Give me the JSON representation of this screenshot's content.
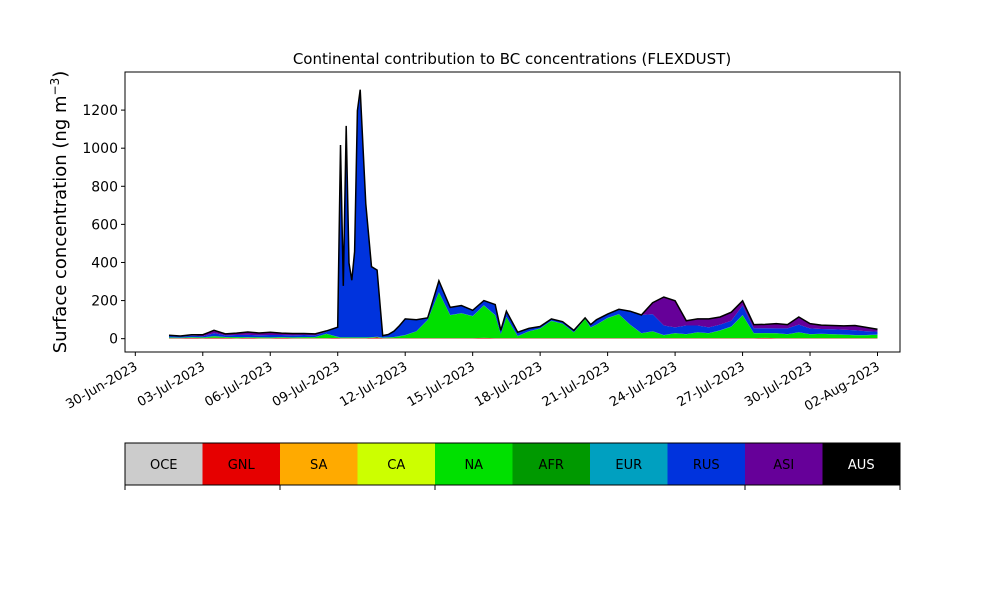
{
  "chart_data": {
    "type": "area",
    "title": "Continental contribution to BC concentrations (FLEXDUST)",
    "ylabel": "Surface concentration (ng m",
    "ylabel_sup": "−3",
    "ylabel_close": ")",
    "xlabel": "",
    "ylim": [
      -70,
      1400
    ],
    "xlim": [
      "2023-06-29T13:00",
      "2023-08-03T00:00"
    ],
    "y_ticks": [
      0,
      200,
      400,
      600,
      800,
      1000,
      1200
    ],
    "x_ticks": [
      "30-Jun-2023",
      "03-Jul-2023",
      "06-Jul-2023",
      "09-Jul-2023",
      "12-Jul-2023",
      "15-Jul-2023",
      "18-Jul-2023",
      "21-Jul-2023",
      "24-Jul-2023",
      "27-Jul-2023",
      "30-Jul-2023",
      "02-Aug-2023"
    ],
    "x": [
      "2023-07-01T12:00",
      "2023-07-02T00:00",
      "2023-07-02T12:00",
      "2023-07-03T00:00",
      "2023-07-03T06:00",
      "2023-07-03T12:00",
      "2023-07-04T00:00",
      "2023-07-04T12:00",
      "2023-07-05T00:00",
      "2023-07-05T12:00",
      "2023-07-06T00:00",
      "2023-07-06T12:00",
      "2023-07-07T00:00",
      "2023-07-07T12:00",
      "2023-07-08T00:00",
      "2023-07-08T12:00",
      "2023-07-09T00:00",
      "2023-07-09T03:00",
      "2023-07-09T06:00",
      "2023-07-09T09:00",
      "2023-07-09T12:00",
      "2023-07-09T15:00",
      "2023-07-09T18:00",
      "2023-07-09T21:00",
      "2023-07-10T00:00",
      "2023-07-10T06:00",
      "2023-07-10T12:00",
      "2023-07-10T18:00",
      "2023-07-11T00:00",
      "2023-07-11T06:00",
      "2023-07-11T12:00",
      "2023-07-11T18:00",
      "2023-07-12T00:00",
      "2023-07-12T12:00",
      "2023-07-13T00:00",
      "2023-07-13T12:00",
      "2023-07-14T00:00",
      "2023-07-14T12:00",
      "2023-07-15T00:00",
      "2023-07-15T12:00",
      "2023-07-16T00:00",
      "2023-07-16T06:00",
      "2023-07-16T12:00",
      "2023-07-17T00:00",
      "2023-07-17T12:00",
      "2023-07-18T00:00",
      "2023-07-18T12:00",
      "2023-07-19T00:00",
      "2023-07-19T12:00",
      "2023-07-20T00:00",
      "2023-07-20T06:00",
      "2023-07-20T12:00",
      "2023-07-21T00:00",
      "2023-07-21T12:00",
      "2023-07-22T00:00",
      "2023-07-22T12:00",
      "2023-07-23T00:00",
      "2023-07-23T12:00",
      "2023-07-24T00:00",
      "2023-07-24T12:00",
      "2023-07-25T00:00",
      "2023-07-25T12:00",
      "2023-07-26T00:00",
      "2023-07-26T12:00",
      "2023-07-27T00:00",
      "2023-07-27T12:00",
      "2023-07-28T00:00",
      "2023-07-28T12:00",
      "2023-07-29T00:00",
      "2023-07-29T12:00",
      "2023-07-30T00:00",
      "2023-07-30T12:00",
      "2023-07-31T00:00",
      "2023-07-31T12:00",
      "2023-08-01T00:00",
      "2023-08-01T12:00",
      "2023-08-02T00:00"
    ],
    "series": [
      {
        "name": "OCE",
        "color": "#cccccc",
        "values": [
          1,
          1,
          1,
          1,
          1,
          1,
          1,
          1,
          1,
          1,
          1,
          1,
          1,
          1,
          1,
          1,
          1,
          1,
          1,
          1,
          1,
          1,
          1,
          1,
          1,
          1,
          1,
          1,
          1,
          1,
          1,
          1,
          1,
          1,
          1,
          1,
          1,
          1,
          1,
          1,
          1,
          1,
          1,
          1,
          1,
          1,
          1,
          1,
          1,
          1,
          1,
          1,
          1,
          1,
          1,
          1,
          1,
          1,
          1,
          1,
          1,
          1,
          1,
          1,
          1,
          1,
          1,
          1,
          1,
          1,
          1,
          1,
          1,
          1,
          1,
          1,
          1
        ]
      },
      {
        "name": "GNL",
        "color": "#e60000",
        "values": [
          2,
          2,
          3,
          2,
          3,
          4,
          3,
          2,
          3,
          2,
          2,
          3,
          2,
          2,
          2,
          2,
          3,
          2,
          2,
          2,
          2,
          2,
          2,
          2,
          2,
          2,
          3,
          5,
          2,
          2,
          2,
          2,
          2,
          2,
          2,
          2,
          2,
          2,
          2,
          3,
          2,
          2,
          2,
          2,
          2,
          2,
          2,
          2,
          2,
          2,
          2,
          2,
          2,
          2,
          2,
          2,
          2,
          2,
          2,
          2,
          2,
          2,
          2,
          2,
          2,
          2,
          3,
          2,
          2,
          2,
          2,
          2,
          2,
          2,
          2,
          2,
          2
        ]
      },
      {
        "name": "SA",
        "color": "#ffaa00",
        "values": [
          0,
          0,
          0,
          0,
          0,
          0,
          0,
          0,
          0,
          0,
          0,
          0,
          0,
          0,
          0,
          0,
          0,
          0,
          0,
          0,
          0,
          0,
          0,
          0,
          0,
          0,
          0,
          0,
          0,
          0,
          0,
          0,
          0,
          0,
          0,
          0,
          0,
          0,
          0,
          0,
          0,
          0,
          0,
          0,
          0,
          0,
          0,
          0,
          0,
          0,
          0,
          0,
          0,
          0,
          0,
          0,
          0,
          0,
          0,
          0,
          0,
          0,
          0,
          0,
          0,
          0,
          0,
          0,
          0,
          0,
          0,
          0,
          0,
          0,
          0,
          0,
          0
        ]
      },
      {
        "name": "CA",
        "color": "#ccff00",
        "values": [
          0,
          0,
          0,
          0,
          0,
          0,
          0,
          0,
          0,
          0,
          0,
          0,
          0,
          0,
          0,
          0,
          0,
          0,
          0,
          0,
          0,
          0,
          0,
          0,
          0,
          0,
          0,
          0,
          0,
          0,
          0,
          0,
          0,
          0,
          0,
          0,
          0,
          0,
          0,
          0,
          0,
          0,
          0,
          0,
          0,
          0,
          0,
          0,
          0,
          0,
          0,
          0,
          0,
          0,
          0,
          0,
          0,
          0,
          0,
          0,
          0,
          0,
          0,
          0,
          0,
          0,
          0,
          0,
          0,
          0,
          0,
          0,
          0,
          0,
          0,
          0,
          0
        ]
      },
      {
        "name": "NA",
        "color": "#00e000",
        "values": [
          3,
          2,
          3,
          3,
          5,
          8,
          4,
          5,
          3,
          4,
          3,
          4,
          3,
          5,
          5,
          22,
          5,
          3,
          3,
          3,
          3,
          3,
          3,
          3,
          3,
          3,
          3,
          3,
          2,
          3,
          5,
          10,
          15,
          35,
          95,
          240,
          120,
          130,
          115,
          170,
          120,
          20,
          110,
          10,
          35,
          50,
          90,
          75,
          30,
          100,
          55,
          70,
          105,
          125,
          70,
          25,
          35,
          15,
          25,
          20,
          30,
          25,
          40,
          60,
          120,
          25,
          25,
          25,
          20,
          30,
          20,
          22,
          20,
          18,
          15,
          15,
          18
        ]
      },
      {
        "name": "AFR",
        "color": "#009900",
        "values": [
          0,
          0,
          0,
          0,
          0,
          0,
          0,
          0,
          0,
          0,
          0,
          0,
          0,
          0,
          0,
          0,
          0,
          0,
          0,
          0,
          0,
          0,
          0,
          0,
          0,
          0,
          0,
          0,
          0,
          0,
          0,
          0,
          0,
          0,
          0,
          0,
          0,
          0,
          0,
          0,
          0,
          0,
          0,
          0,
          0,
          0,
          0,
          0,
          0,
          0,
          0,
          0,
          0,
          0,
          0,
          0,
          0,
          0,
          0,
          0,
          0,
          0,
          0,
          0,
          0,
          0,
          0,
          0,
          0,
          0,
          0,
          0,
          0,
          0,
          0,
          0,
          0
        ]
      },
      {
        "name": "EUR",
        "color": "#00a0c0",
        "values": [
          1,
          1,
          1,
          1,
          1,
          1,
          1,
          1,
          1,
          1,
          1,
          1,
          1,
          1,
          1,
          1,
          1,
          1,
          1,
          1,
          1,
          1,
          1,
          1,
          1,
          1,
          1,
          1,
          1,
          1,
          1,
          1,
          1,
          1,
          1,
          1,
          1,
          1,
          1,
          1,
          1,
          1,
          1,
          1,
          1,
          1,
          1,
          1,
          1,
          1,
          1,
          1,
          1,
          1,
          1,
          1,
          1,
          1,
          1,
          1,
          1,
          1,
          1,
          1,
          1,
          1,
          1,
          1,
          1,
          1,
          1,
          1,
          1,
          1,
          1,
          1,
          1
        ]
      },
      {
        "name": "RUS",
        "color": "#0033dd",
        "values": [
          8,
          5,
          8,
          6,
          10,
          15,
          8,
          10,
          12,
          10,
          12,
          10,
          10,
          10,
          8,
          10,
          50,
          1010,
          270,
          1110,
          390,
          300,
          450,
          1190,
          1300,
          700,
          370,
          350,
          10,
          15,
          30,
          55,
          85,
          60,
          10,
          60,
          40,
          40,
          30,
          25,
          55,
          20,
          30,
          20,
          15,
          10,
          10,
          10,
          10,
          5,
          15,
          25,
          20,
          25,
          70,
          95,
          90,
          50,
          30,
          45,
          35,
          30,
          30,
          30,
          50,
          25,
          25,
          25,
          30,
          40,
          30,
          25,
          25,
          25,
          25,
          20,
          15
        ]
      },
      {
        "name": "ASI",
        "color": "#660099",
        "values": [
          3,
          3,
          5,
          8,
          12,
          15,
          8,
          10,
          15,
          12,
          15,
          10,
          10,
          8,
          8,
          5,
          0,
          0,
          0,
          0,
          0,
          0,
          0,
          0,
          0,
          0,
          0,
          0,
          0,
          0,
          0,
          0,
          0,
          0,
          0,
          0,
          0,
          0,
          0,
          0,
          0,
          0,
          0,
          0,
          0,
          0,
          0,
          0,
          0,
          0,
          0,
          0,
          0,
          0,
          0,
          0,
          60,
          150,
          140,
          25,
          35,
          45,
          40,
          45,
          25,
          20,
          20,
          25,
          20,
          40,
          25,
          20,
          20,
          20,
          25,
          20,
          12
        ]
      },
      {
        "name": "AUS",
        "color": "#000000",
        "values": [
          0,
          0,
          0,
          0,
          0,
          0,
          0,
          0,
          0,
          0,
          0,
          0,
          0,
          0,
          0,
          0,
          0,
          0,
          0,
          0,
          0,
          0,
          0,
          0,
          0,
          0,
          0,
          0,
          0,
          0,
          0,
          0,
          0,
          0,
          0,
          0,
          0,
          0,
          0,
          0,
          0,
          0,
          0,
          0,
          0,
          0,
          0,
          0,
          0,
          0,
          0,
          0,
          0,
          0,
          0,
          0,
          0,
          0,
          0,
          0,
          0,
          0,
          0,
          0,
          0,
          0,
          0,
          0,
          0,
          0,
          0,
          0,
          0,
          0,
          0,
          0,
          0
        ]
      }
    ],
    "legend": {
      "placement": "bottom",
      "items": [
        {
          "label": "OCE",
          "color": "#cccccc",
          "text_color": "#000000"
        },
        {
          "label": "GNL",
          "color": "#e60000",
          "text_color": "#000000"
        },
        {
          "label": "SA",
          "color": "#ffaa00",
          "text_color": "#000000"
        },
        {
          "label": "CA",
          "color": "#ccff00",
          "text_color": "#000000"
        },
        {
          "label": "NA",
          "color": "#00e000",
          "text_color": "#000000"
        },
        {
          "label": "AFR",
          "color": "#009900",
          "text_color": "#000000"
        },
        {
          "label": "EUR",
          "color": "#00a0c0",
          "text_color": "#000000"
        },
        {
          "label": "RUS",
          "color": "#0033dd",
          "text_color": "#000000"
        },
        {
          "label": "ASI",
          "color": "#660099",
          "text_color": "#000000"
        },
        {
          "label": "AUS",
          "color": "#000000",
          "text_color": "#ffffff"
        }
      ]
    },
    "grid": false
  }
}
